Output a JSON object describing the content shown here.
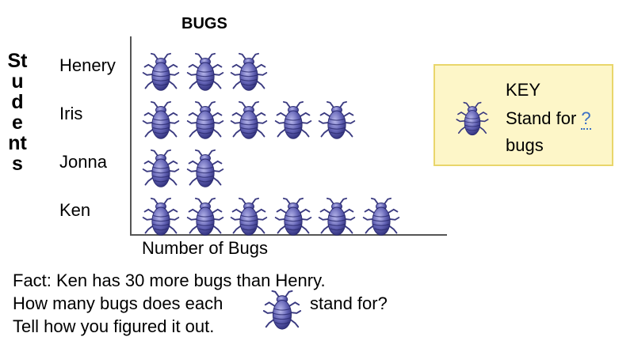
{
  "chart_data": {
    "type": "pictograph",
    "title": "BUGS",
    "xlabel": "Number of Bugs",
    "ylabel": "Students",
    "categories": [
      "Henery",
      "Iris",
      "Jonna",
      "Ken"
    ],
    "values": [
      3,
      5,
      2,
      6
    ],
    "value_unit": "bug icons",
    "icon": "bug-icon",
    "icon_color": "#5a5aa8"
  },
  "key": {
    "title": "KEY",
    "stand_for": "Stand for",
    "placeholder": "?",
    "unit": "bugs"
  },
  "text": {
    "fact": "Fact: Ken has 30 more bugs than Henry.",
    "question_start": "How many bugs does each",
    "question_end": "stand for?",
    "instruction": "Tell how you figured it out."
  }
}
